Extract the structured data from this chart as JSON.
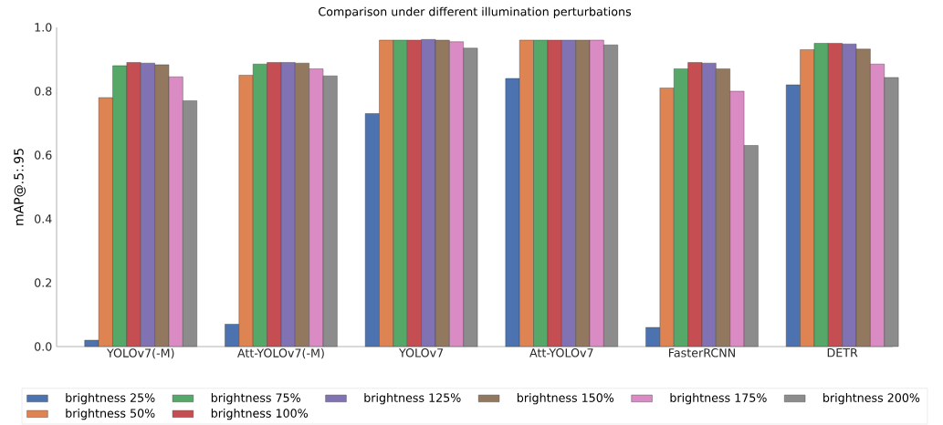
{
  "chart_data": {
    "type": "bar",
    "title": "Comparison under different illumination perturbations",
    "ylabel": "mAP@.5:.95",
    "categories": [
      "YOLOv7(-M)",
      "Att-YOLOv7(-M)",
      "YOLOv7",
      "Att-YOLOv7",
      "FasterRCNN",
      "DETR"
    ],
    "ylim": [
      0,
      1
    ],
    "yticks": [
      {
        "value": 0,
        "label": "0.0"
      },
      0.2,
      0.4,
      0.6,
      0.8,
      {
        "value": 1,
        "label": "1.0"
      }
    ],
    "legend": "bottom",
    "series": [
      {
        "name": "brightness 25%",
        "color": "#4c72b0",
        "values": [
          0.02,
          0.07,
          0.73,
          0.84,
          0.06,
          0.82
        ]
      },
      {
        "name": "brightness 50%",
        "color": "#dd8452",
        "values": [
          0.78,
          0.85,
          0.96,
          0.96,
          0.81,
          0.93
        ]
      },
      {
        "name": "brightness 75%",
        "color": "#55a868",
        "values": [
          0.88,
          0.885,
          0.96,
          0.96,
          0.87,
          0.95
        ]
      },
      {
        "name": "brightness 100%",
        "color": "#c44e52",
        "values": [
          0.89,
          0.89,
          0.96,
          0.96,
          0.89,
          0.95
        ]
      },
      {
        "name": "brightness 125%",
        "color": "#8172b3",
        "values": [
          0.888,
          0.89,
          0.962,
          0.96,
          0.888,
          0.948
        ]
      },
      {
        "name": "brightness 150%",
        "color": "#937860",
        "values": [
          0.883,
          0.888,
          0.96,
          0.96,
          0.87,
          0.932
        ]
      },
      {
        "name": "brightness 175%",
        "color": "#da8bc3",
        "values": [
          0.845,
          0.87,
          0.955,
          0.96,
          0.8,
          0.885
        ]
      },
      {
        "name": "brightness 200%",
        "color": "#8c8c8c",
        "values": [
          0.77,
          0.848,
          0.935,
          0.945,
          0.63,
          0.843
        ]
      }
    ]
  }
}
